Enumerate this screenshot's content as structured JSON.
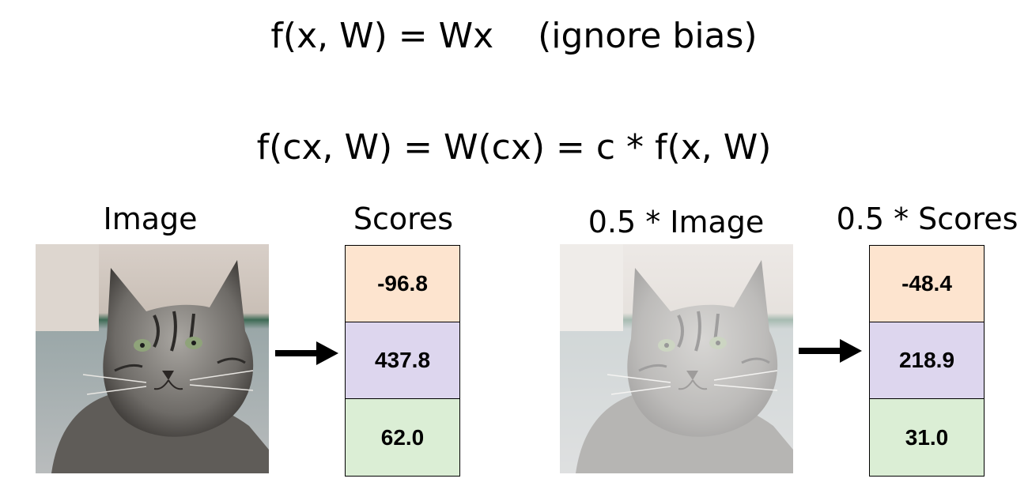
{
  "equations": {
    "line1": "f(x, W) = Wx    (ignore bias)",
    "line2": "f(cx, W) = W(cx) = c * f(x, W)"
  },
  "left": {
    "image_label": "Image",
    "scores_label": "Scores",
    "scores": [
      "-96.8",
      "437.8",
      "62.0"
    ]
  },
  "right": {
    "image_label": "0.5 * Image",
    "scores_label": "0.5 * Scores",
    "scores": [
      "-48.4",
      "218.9",
      "31.0"
    ]
  },
  "colors": {
    "score_1": "#fde4cf",
    "score_2": "#ddd6ee",
    "score_3": "#dbeed5"
  },
  "icons": {
    "photo": "cat-photo",
    "arrow": "arrow-right-icon"
  }
}
